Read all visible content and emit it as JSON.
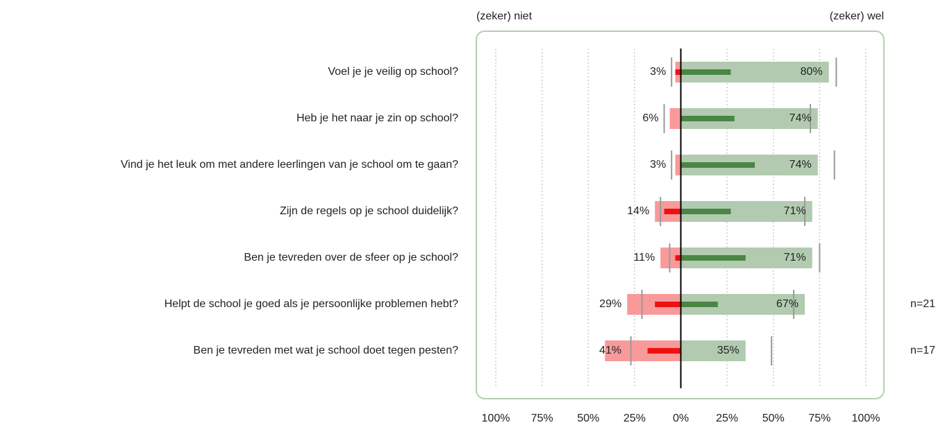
{
  "chart_data": {
    "type": "diverging_bar",
    "left_label": "(zeker) niet",
    "right_label": "(zeker) wel",
    "categories": [
      "Voel je je veilig op school?",
      "Heb je het naar je zin op school?",
      "Vind je het leuk om met andere leerlingen van je school om te gaan?",
      "Zijn de regels op je school duidelijk?",
      "Ben je tevreden over de sfeer op je school?",
      "Helpt de school je goed als je persoonlijke problemen hebt?",
      "Ben je tevreden met wat je school doet tegen pesten?"
    ],
    "series": [
      {
        "kind": "bar",
        "color": "#f99a9a",
        "values": [
          -3,
          -6,
          -3,
          -14,
          -11,
          -29,
          -41
        ],
        "value_labels": [
          "3%",
          "6%",
          "3%",
          "14%",
          "11%",
          "29%",
          "41%"
        ]
      },
      {
        "kind": "bar",
        "color": "#b2cbb0",
        "values": [
          80,
          74,
          74,
          71,
          71,
          67,
          35
        ],
        "value_labels": [
          "80%",
          "74%",
          "74%",
          "71%",
          "71%",
          "67%",
          "35%"
        ]
      },
      {
        "kind": "thin_bar",
        "color": "#ee1111",
        "values": [
          -3,
          0,
          0,
          -9,
          -3,
          -14,
          -18
        ]
      },
      {
        "kind": "thin_bar",
        "color": "#4a8544",
        "values": [
          27,
          29,
          40,
          27,
          35,
          20,
          0
        ]
      },
      {
        "kind": "marker",
        "color": "#999999",
        "values": [
          -5,
          -9,
          -5,
          -11,
          -6,
          -21,
          -27
        ]
      },
      {
        "kind": "marker",
        "color": "#999999",
        "values": [
          84,
          70,
          83,
          67,
          75,
          61,
          49
        ]
      }
    ],
    "notes": [
      null,
      null,
      null,
      null,
      null,
      "n=21",
      "n=17"
    ],
    "xlim": [
      -100,
      100
    ],
    "xticks": [
      {
        "value": -100,
        "label": "100%"
      },
      {
        "value": -75,
        "label": "75%"
      },
      {
        "value": -50,
        "label": "50%"
      },
      {
        "value": -25,
        "label": "25%"
      },
      {
        "value": 0,
        "label": "0%"
      },
      {
        "value": 25,
        "label": "25%"
      },
      {
        "value": 50,
        "label": "50%"
      },
      {
        "value": 75,
        "label": "75%"
      },
      {
        "value": 100,
        "label": "100%"
      }
    ],
    "grid": true
  }
}
